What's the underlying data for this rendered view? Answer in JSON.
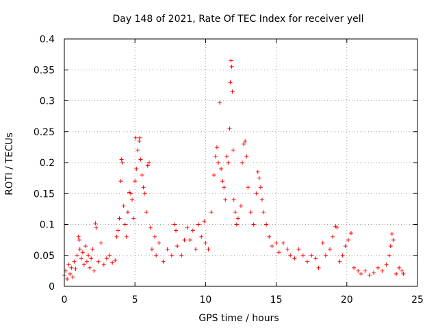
{
  "chart_data": {
    "type": "scatter",
    "title": "Day 148 of 2021, Rate Of TEC Index for receiver yell",
    "xlabel": "GPS time / hours",
    "ylabel": "ROTI / TECUs",
    "xlim": [
      0,
      25
    ],
    "ylim": [
      0,
      0.4
    ],
    "x_ticks": [
      "0",
      "5",
      "10",
      "15",
      "20",
      "25"
    ],
    "y_ticks": [
      "0",
      "0.05",
      "0.1",
      "0.15",
      "0.2",
      "0.25",
      "0.3",
      "0.35",
      "0.4"
    ],
    "grid": true,
    "marker": "plus",
    "color": "#ff0000",
    "series": [
      {
        "points": [
          [
            0.0,
            0.018
          ],
          [
            0.1,
            0.025
          ],
          [
            0.2,
            0.012
          ],
          [
            0.3,
            0.035
          ],
          [
            0.4,
            0.02
          ],
          [
            0.5,
            0.03
          ],
          [
            0.6,
            0.015
          ],
          [
            0.7,
            0.04
          ],
          [
            0.8,
            0.028
          ],
          [
            0.9,
            0.05
          ],
          [
            1.0,
            0.08
          ],
          [
            1.05,
            0.075
          ],
          [
            1.1,
            0.06
          ],
          [
            1.2,
            0.045
          ],
          [
            1.3,
            0.055
          ],
          [
            1.4,
            0.035
          ],
          [
            1.5,
            0.065
          ],
          [
            1.6,
            0.04
          ],
          [
            1.7,
            0.05
          ],
          [
            1.8,
            0.03
          ],
          [
            1.9,
            0.045
          ],
          [
            2.0,
            0.06
          ],
          [
            2.1,
            0.025
          ],
          [
            2.2,
            0.102
          ],
          [
            2.25,
            0.095
          ],
          [
            2.4,
            0.04
          ],
          [
            2.6,
            0.07
          ],
          [
            2.8,
            0.035
          ],
          [
            3.0,
            0.045
          ],
          [
            3.2,
            0.05
          ],
          [
            3.4,
            0.038
          ],
          [
            3.6,
            0.042
          ],
          [
            3.7,
            0.08
          ],
          [
            3.8,
            0.09
          ],
          [
            3.9,
            0.11
          ],
          [
            4.0,
            0.17
          ],
          [
            4.05,
            0.205
          ],
          [
            4.1,
            0.2
          ],
          [
            4.2,
            0.13
          ],
          [
            4.3,
            0.1
          ],
          [
            4.4,
            0.08
          ],
          [
            4.5,
            0.12
          ],
          [
            4.6,
            0.152
          ],
          [
            4.7,
            0.15
          ],
          [
            4.8,
            0.14
          ],
          [
            4.9,
            0.11
          ],
          [
            5.0,
            0.17
          ],
          [
            5.05,
            0.24
          ],
          [
            5.1,
            0.19
          ],
          [
            5.2,
            0.22
          ],
          [
            5.3,
            0.235
          ],
          [
            5.35,
            0.24
          ],
          [
            5.4,
            0.205
          ],
          [
            5.5,
            0.18
          ],
          [
            5.6,
            0.16
          ],
          [
            5.7,
            0.15
          ],
          [
            5.8,
            0.12
          ],
          [
            5.9,
            0.195
          ],
          [
            6.0,
            0.2
          ],
          [
            6.1,
            0.095
          ],
          [
            6.2,
            0.06
          ],
          [
            6.4,
            0.08
          ],
          [
            6.5,
            0.05
          ],
          [
            6.7,
            0.07
          ],
          [
            7.0,
            0.04
          ],
          [
            7.3,
            0.06
          ],
          [
            7.6,
            0.05
          ],
          [
            7.8,
            0.1
          ],
          [
            7.9,
            0.09
          ],
          [
            8.0,
            0.065
          ],
          [
            8.3,
            0.05
          ],
          [
            8.5,
            0.075
          ],
          [
            8.7,
            0.095
          ],
          [
            8.9,
            0.075
          ],
          [
            9.1,
            0.09
          ],
          [
            9.3,
            0.06
          ],
          [
            9.5,
            0.1
          ],
          [
            9.7,
            0.08
          ],
          [
            9.9,
            0.105
          ],
          [
            10.0,
            0.07
          ],
          [
            10.2,
            0.06
          ],
          [
            10.4,
            0.12
          ],
          [
            10.6,
            0.18
          ],
          [
            10.7,
            0.21
          ],
          [
            10.8,
            0.225
          ],
          [
            10.9,
            0.2
          ],
          [
            11.0,
            0.297
          ],
          [
            11.1,
            0.19
          ],
          [
            11.2,
            0.17
          ],
          [
            11.3,
            0.16
          ],
          [
            11.4,
            0.14
          ],
          [
            11.5,
            0.21
          ],
          [
            11.6,
            0.2
          ],
          [
            11.7,
            0.255
          ],
          [
            11.75,
            0.33
          ],
          [
            11.8,
            0.365
          ],
          [
            11.85,
            0.355
          ],
          [
            11.9,
            0.315
          ],
          [
            11.95,
            0.22
          ],
          [
            12.0,
            0.14
          ],
          [
            12.1,
            0.12
          ],
          [
            12.2,
            0.1
          ],
          [
            12.3,
            0.11
          ],
          [
            12.5,
            0.13
          ],
          [
            12.6,
            0.2
          ],
          [
            12.7,
            0.23
          ],
          [
            12.8,
            0.235
          ],
          [
            12.9,
            0.21
          ],
          [
            13.0,
            0.16
          ],
          [
            13.2,
            0.12
          ],
          [
            13.4,
            0.1
          ],
          [
            13.6,
            0.15
          ],
          [
            13.7,
            0.185
          ],
          [
            13.8,
            0.175
          ],
          [
            13.9,
            0.16
          ],
          [
            14.0,
            0.14
          ],
          [
            14.1,
            0.12
          ],
          [
            14.3,
            0.1
          ],
          [
            14.5,
            0.08
          ],
          [
            14.7,
            0.065
          ],
          [
            15.0,
            0.07
          ],
          [
            15.2,
            0.055
          ],
          [
            15.5,
            0.07
          ],
          [
            15.8,
            0.06
          ],
          [
            16.0,
            0.05
          ],
          [
            16.3,
            0.045
          ],
          [
            16.6,
            0.06
          ],
          [
            16.9,
            0.05
          ],
          [
            17.2,
            0.04
          ],
          [
            17.5,
            0.05
          ],
          [
            17.8,
            0.045
          ],
          [
            18.0,
            0.03
          ],
          [
            18.3,
            0.07
          ],
          [
            18.5,
            0.05
          ],
          [
            18.8,
            0.06
          ],
          [
            19.0,
            0.08
          ],
          [
            19.2,
            0.097
          ],
          [
            19.3,
            0.095
          ],
          [
            19.5,
            0.04
          ],
          [
            19.7,
            0.05
          ],
          [
            19.9,
            0.065
          ],
          [
            20.1,
            0.075
          ],
          [
            20.3,
            0.086
          ],
          [
            20.5,
            0.03
          ],
          [
            20.8,
            0.025
          ],
          [
            21.0,
            0.02
          ],
          [
            21.3,
            0.025
          ],
          [
            21.6,
            0.018
          ],
          [
            21.9,
            0.022
          ],
          [
            22.2,
            0.03
          ],
          [
            22.5,
            0.025
          ],
          [
            22.8,
            0.035
          ],
          [
            23.0,
            0.05
          ],
          [
            23.1,
            0.065
          ],
          [
            23.2,
            0.085
          ],
          [
            23.3,
            0.075
          ],
          [
            23.5,
            0.02
          ],
          [
            23.7,
            0.03
          ],
          [
            23.9,
            0.025
          ],
          [
            24.0,
            0.02
          ]
        ]
      }
    ]
  }
}
